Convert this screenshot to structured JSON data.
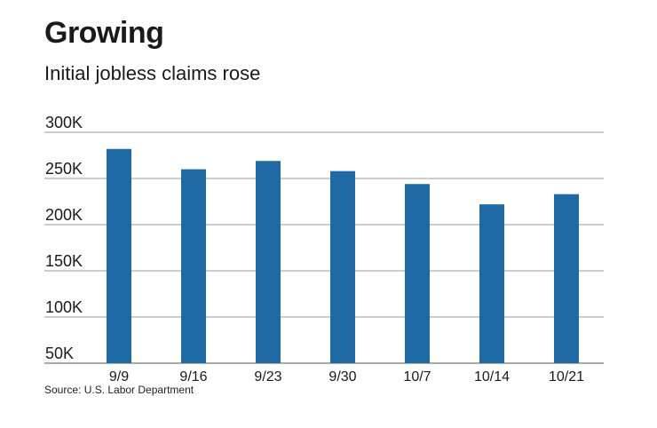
{
  "chart_data": {
    "type": "bar",
    "title": "Growing",
    "subtitle": "Initial jobless claims rose",
    "source": "Source: U.S. Labor Department",
    "categories": [
      "9/9",
      "9/16",
      "9/23",
      "9/30",
      "10/7",
      "10/14",
      "10/21"
    ],
    "values": [
      282000,
      260000,
      269000,
      258000,
      244000,
      222000,
      233000
    ],
    "ylim": [
      50000,
      300000
    ],
    "yticks": [
      300000,
      250000,
      200000,
      150000,
      100000,
      50000
    ],
    "ytick_labels": [
      "300K",
      "250K",
      "200K",
      "150K",
      "100K",
      "50K"
    ],
    "grid": true,
    "legend": "none",
    "bar_color": "#1f6aa5"
  }
}
